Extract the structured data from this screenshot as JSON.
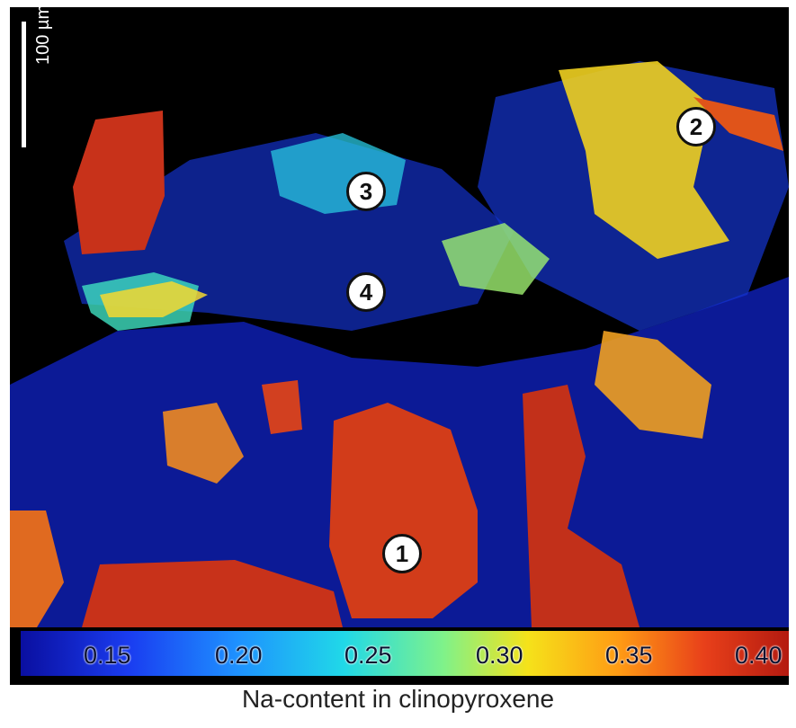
{
  "scale_bar": {
    "label": "100 µm"
  },
  "markers": [
    {
      "label": "1"
    },
    {
      "label": "2"
    },
    {
      "label": "3"
    },
    {
      "label": "4"
    }
  ],
  "colorbar": {
    "ticks": [
      "0.15",
      "0.20",
      "0.25",
      "0.30",
      "0.35",
      "0.40"
    ]
  },
  "caption": "Na-content in clinopyroxene",
  "colors": {
    "background": "#000000",
    "low": "#0a0fa0",
    "mid": "#20d8e8",
    "high": "#b41a10"
  }
}
